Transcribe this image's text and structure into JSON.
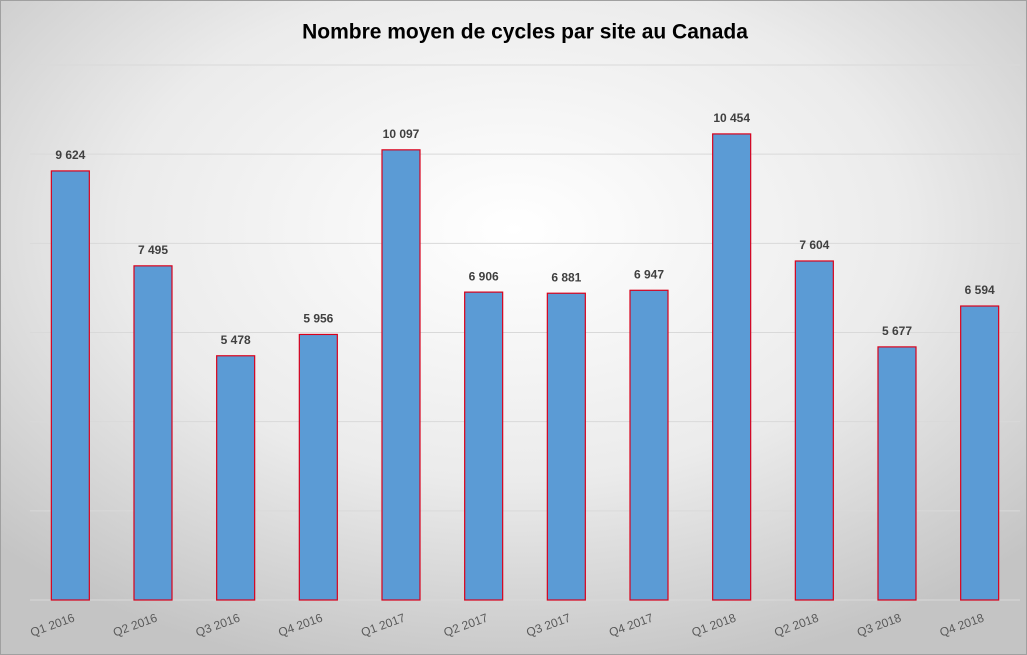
{
  "chart_data": {
    "type": "bar",
    "title": "Nombre moyen de cycles par site au Canada",
    "categories": [
      "Q1 2016",
      "Q2 2016",
      "Q3 2016",
      "Q4 2016",
      "Q1 2017",
      "Q2 2017",
      "Q3 2017",
      "Q4 2017",
      "Q1 2018",
      "Q2 2018",
      "Q3 2018",
      "Q4 2018"
    ],
    "values": [
      9624,
      7495,
      5478,
      5956,
      10097,
      6906,
      6881,
      6947,
      10454,
      7604,
      5677,
      6594
    ],
    "value_labels": [
      "9 624",
      "7 495",
      "5 478",
      "5 956",
      "10 097",
      "6 906",
      "6 881",
      "6 947",
      "10 454",
      "7 604",
      "5 677",
      "6 594"
    ],
    "color": "#5b9bd5",
    "edge_color": "#d9001b",
    "ylim": [
      0,
      12000
    ],
    "yticks": [
      0,
      2000,
      4000,
      6000,
      8000,
      10000,
      12000
    ],
    "grid": true
  }
}
